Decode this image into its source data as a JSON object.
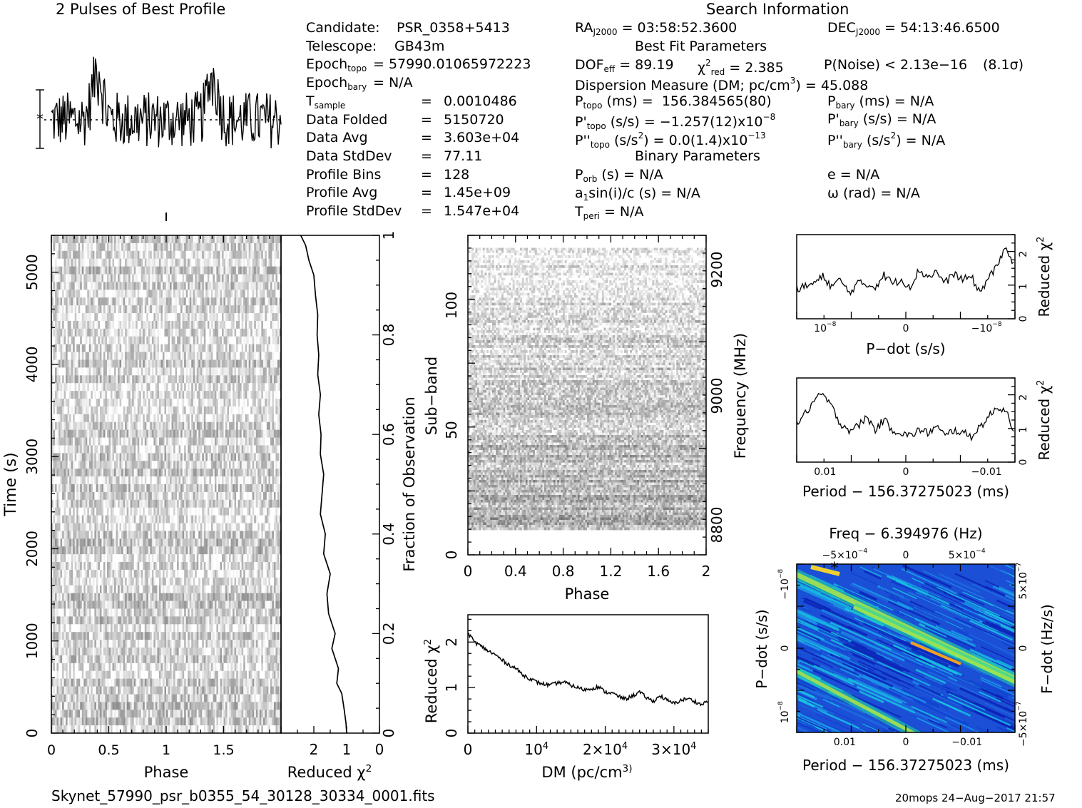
{
  "headers": {
    "profile_title": "2 Pulses of Best Profile",
    "search_title": "Search Information",
    "best_fit_title": "Best Fit Parameters",
    "binary_title": "Binary Parameters"
  },
  "candidate_info": [
    {
      "label": "Candidate:",
      "value": "PSR_0358+5413"
    },
    {
      "label": "Telescope:",
      "value": "GB43m"
    },
    {
      "label": "Epoch",
      "sub": "topo",
      "value": "= 57990.01065972223"
    },
    {
      "label": "Epoch",
      "sub": "bary",
      "value": "= N/A"
    },
    {
      "label": "T",
      "sub": "sample",
      "eq": "=",
      "value": "0.0010486"
    },
    {
      "label": "Data Folded",
      "eq": "=",
      "value": "5150720"
    },
    {
      "label": "Data Avg",
      "eq": "=",
      "value": "3.603e+04"
    },
    {
      "label": "Data StdDev",
      "eq": "=",
      "value": "77.11"
    },
    {
      "label": "Profile Bins",
      "eq": "=",
      "value": "128"
    },
    {
      "label": "Profile Avg",
      "eq": "=",
      "value": "1.45e+09"
    },
    {
      "label": "Profile StdDev",
      "eq": "=",
      "value": "1.547e+04"
    }
  ],
  "search_info": {
    "ra_label": "RA",
    "ra_sub": "J2000",
    "ra_value": "= 03:58:52.3600",
    "dec_label": "DEC",
    "dec_sub": "J2000",
    "dec_value": "= 54:13:46.6500",
    "dof_label": "DOF",
    "dof_sub": "eff",
    "dof_value": "= 89.19",
    "chi_label": "χ",
    "chi_sup": "2",
    "chi_sub": "red",
    "chi_value": "= 2.385",
    "pnoise": "P(Noise) < 2.13e−16",
    "sigma": "(8.1σ)",
    "dm_prefix": "Dispersion Measure (DM; pc/cm",
    "dm_sup": "3",
    "dm_suffix": ") = 45.088",
    "ptopo_label": "P",
    "ptopo_sub": "topo",
    "ptopo_units": "(ms) =",
    "ptopo_value": "156.384565(80)",
    "pbary_label": "P",
    "pbary_sub": "bary",
    "pbary_value": "(ms) = N/A",
    "pdtopo_label": "P'",
    "pdtopo_sub": "topo",
    "pdtopo_value": "(s/s) = −1.257(12)x10",
    "pdtopo_sup": "−8",
    "pdbary_label": "P'",
    "pdbary_sub": "bary",
    "pdbary_value": "(s/s) = N/A",
    "pddtopo_label": "P''",
    "pddtopo_sub": "topo",
    "pddtopo_value1": "(s/s",
    "pddtopo_sup1": "2",
    "pddtopo_value2": ") = 0.0(1.4)x10",
    "pddtopo_sup2": "−13",
    "pddbary_label": "P''",
    "pddbary_sub": "bary",
    "pddbary_value1": "(s/s",
    "pddbary_sup": "2",
    "pddbary_value2": ") = N/A",
    "porb_label": "P",
    "porb_sub": "orb",
    "porb_value": "(s) = N/A",
    "e_value": "e = N/A",
    "a1_label": "a",
    "a1_sub": "1",
    "a1_value": "sin(i)/c (s) = N/A",
    "omega_value": "ω (rad) = N/A",
    "tperi_label": "T",
    "tperi_sub": "peri",
    "tperi_value": "= N/A"
  },
  "footer": {
    "filename": "Skynet_57990_psr_b0355_54_30128_30334_0001.fits",
    "stamp": "20mops 24−Aug−2017 21:57"
  },
  "chart_data": [
    {
      "type": "line",
      "name": "profile",
      "title": "2 Pulses of Best Profile",
      "x_range": [
        0,
        2
      ],
      "pulse_peaks_phase": [
        0.4,
        1.4
      ],
      "notes_error_bar": true
    },
    {
      "type": "heatmap",
      "name": "time-phase",
      "xlabel": "Phase",
      "ylabel": "Time (s)",
      "xlim": [
        0,
        2
      ],
      "ylim": [
        0,
        5400
      ],
      "xticks": [
        "0",
        "0.5",
        "1",
        "1.5"
      ],
      "yticks": [
        "0",
        "1000",
        "2000",
        "3000",
        "4000",
        "5000"
      ],
      "colormap": "grayscale"
    },
    {
      "type": "line",
      "name": "chi-vs-fraction",
      "xlabel": "Reduced χ2",
      "ylabel": "Fraction of Observation",
      "xlim": [
        3,
        0
      ],
      "ylim": [
        0,
        1
      ],
      "xticks": [
        "2",
        "1",
        "0"
      ],
      "yticks": [
        "0",
        "0.2",
        "0.4",
        "0.6",
        "0.8",
        "1"
      ],
      "x": [
        1.0,
        1.02,
        1.08,
        1.15,
        1.3,
        1.25,
        1.45,
        1.35,
        1.55,
        1.6,
        1.5,
        1.7,
        1.65,
        1.8,
        1.75,
        1.7,
        1.8,
        1.78,
        1.85,
        1.8,
        1.88,
        1.85,
        1.9,
        1.88,
        1.95,
        2.0,
        2.15,
        2.25,
        2.4
      ],
      "y": [
        0.0,
        0.02,
        0.05,
        0.08,
        0.1,
        0.13,
        0.17,
        0.2,
        0.24,
        0.28,
        0.32,
        0.36,
        0.4,
        0.44,
        0.48,
        0.52,
        0.56,
        0.6,
        0.64,
        0.68,
        0.72,
        0.76,
        0.8,
        0.84,
        0.88,
        0.92,
        0.95,
        0.98,
        1.0
      ]
    },
    {
      "type": "heatmap",
      "name": "subband-phase",
      "xlabel": "Phase",
      "ylabel": "Sub−band",
      "y2label": "Frequency (MHz)",
      "xlim": [
        0,
        2
      ],
      "ylim": [
        0,
        128
      ],
      "xticks": [
        "0",
        "0.4",
        "0.8",
        "1.2",
        "1.6",
        "2"
      ],
      "yticks": [
        "0",
        "50",
        "100"
      ],
      "y2ticks": [
        "8800",
        "9000",
        "9200"
      ],
      "colormap": "grayscale"
    },
    {
      "type": "line",
      "name": "chi-vs-dm",
      "xlabel": "DM (pc/cm3)",
      "ylabel": "Reduced χ2",
      "xlim": [
        0,
        35000
      ],
      "ylim": [
        0,
        2.6
      ],
      "xticks": [
        "0",
        "10^4",
        "2×10^4",
        "3×10^4"
      ],
      "yticks": [
        "0",
        "1",
        "2"
      ],
      "x": [
        0,
        1000,
        2000,
        3000,
        4000,
        5000,
        6000,
        7000,
        8000,
        9000,
        10000,
        11000,
        12000,
        13000,
        14000,
        15000,
        16000,
        17000,
        18000,
        19000,
        20000,
        21000,
        22000,
        23000,
        24000,
        25000,
        26000,
        27000,
        28000,
        29000,
        30000,
        31000,
        32000,
        33000,
        34000,
        35000
      ],
      "y": [
        2.2,
        2.0,
        1.9,
        1.8,
        1.72,
        1.6,
        1.5,
        1.42,
        1.28,
        1.2,
        1.12,
        1.08,
        1.05,
        1.1,
        1.12,
        1.05,
        1.0,
        0.95,
        0.98,
        1.02,
        0.9,
        0.88,
        0.8,
        0.75,
        0.82,
        0.9,
        0.78,
        0.7,
        0.82,
        0.72,
        0.65,
        0.72,
        0.76,
        0.7,
        0.62,
        0.72
      ]
    },
    {
      "type": "line",
      "name": "chi-vs-pdot",
      "xlabel": "P−dot (s/s)",
      "ylabel": "Reduced χ2",
      "ylim": [
        0,
        2.6
      ],
      "xticks": [
        "10^−8",
        "0",
        "−10^−8"
      ],
      "yticks": [
        "0",
        "1",
        "2"
      ],
      "x": [
        0,
        0.04,
        0.08,
        0.12,
        0.16,
        0.2,
        0.24,
        0.28,
        0.32,
        0.36,
        0.4,
        0.44,
        0.48,
        0.52,
        0.56,
        0.6,
        0.64,
        0.68,
        0.72,
        0.76,
        0.8,
        0.84,
        0.88,
        0.92,
        0.96,
        1.0
      ],
      "y": [
        0.9,
        1.0,
        1.1,
        1.3,
        1.0,
        1.2,
        0.8,
        1.1,
        1.05,
        1.0,
        1.35,
        1.1,
        1.2,
        1.0,
        1.5,
        1.3,
        1.45,
        1.1,
        1.4,
        1.2,
        1.3,
        0.8,
        1.3,
        1.6,
        2.3,
        1.5
      ]
    },
    {
      "type": "line",
      "name": "chi-vs-period",
      "xlabel": "Period − 156.37275023 (ms)",
      "ylabel": "Reduced χ2",
      "ylim": [
        0,
        2.6
      ],
      "xticks": [
        "0.01",
        "0",
        "−0.01"
      ],
      "yticks": [
        "0",
        "1",
        "2"
      ],
      "x": [
        0,
        0.04,
        0.08,
        0.12,
        0.16,
        0.2,
        0.24,
        0.28,
        0.32,
        0.36,
        0.4,
        0.44,
        0.48,
        0.52,
        0.56,
        0.6,
        0.64,
        0.68,
        0.72,
        0.76,
        0.8,
        0.84,
        0.88,
        0.92,
        0.96,
        1.0
      ],
      "y": [
        1.2,
        1.5,
        1.9,
        2.1,
        1.7,
        1.2,
        1.0,
        1.1,
        1.4,
        1.0,
        1.3,
        1.0,
        0.9,
        0.8,
        1.0,
        0.9,
        1.1,
        0.8,
        1.0,
        0.9,
        0.8,
        1.1,
        1.4,
        1.7,
        1.6,
        0.9
      ]
    },
    {
      "type": "heatmap",
      "name": "pdot-period-map",
      "title": "Freq − 6.394976 (Hz)",
      "xlabel": "Period − 156.37275023 (ms)",
      "ylabel": "P−dot (s/s)",
      "y2label": "F−dot (Hz/s)",
      "xticks": [
        "0.01",
        "0",
        "−0.01"
      ],
      "x2ticks": [
        "−5×10^−4",
        "0",
        "5×10^−4"
      ],
      "yticks": [
        "−10^−8",
        "0",
        "10^−8"
      ],
      "y2ticks": [
        "5×10^−7",
        "0",
        "−5×10^−7"
      ],
      "colormap": "rainbow"
    }
  ]
}
